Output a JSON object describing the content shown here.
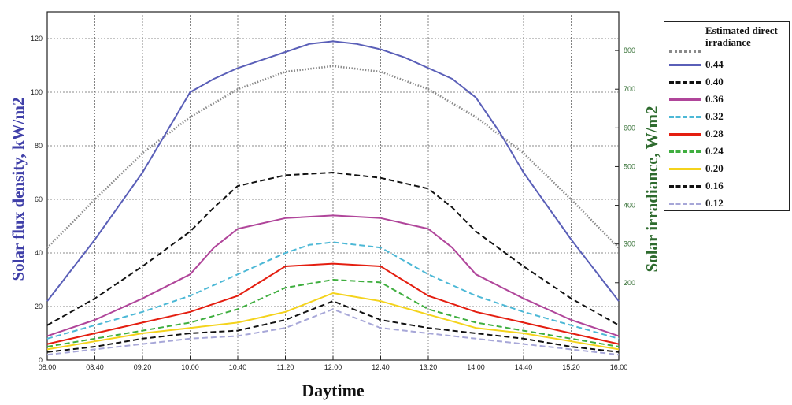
{
  "chart_data": {
    "type": "line",
    "xlabel": "Daytime",
    "ylabel": "Solar flux density, kW/m2",
    "y2label": "Solar irradiance, W/m2",
    "x_ticks": [
      "08:00",
      "08:40",
      "09:20",
      "10:00",
      "10:40",
      "11:20",
      "12:00",
      "12:40",
      "13:20",
      "14:00",
      "14:40",
      "15:20",
      "16:00"
    ],
    "ylim": [
      0,
      130
    ],
    "y_ticks": [
      0,
      20,
      40,
      60,
      80,
      100,
      120
    ],
    "y2lim": [
      0,
      900
    ],
    "y2_ticks": [
      200,
      300,
      400,
      500,
      600,
      700,
      800
    ],
    "grid": true,
    "legend_position": "outside-right",
    "series": [
      {
        "name": "Estimated direct irradiance",
        "axis": "right",
        "color": "#8a8a8a",
        "dash": "dotted",
        "x": [
          "08:00",
          "08:40",
          "09:20",
          "10:00",
          "10:40",
          "11:20",
          "12:00",
          "12:40",
          "13:20",
          "14:00",
          "14:40",
          "15:20",
          "16:00"
        ],
        "values": [
          290,
          415,
          535,
          628,
          700,
          745,
          760,
          745,
          700,
          628,
          535,
          415,
          290
        ]
      },
      {
        "name": "0.44",
        "axis": "left",
        "color": "#5a5fb8",
        "dash": "solid",
        "x": [
          "08:00",
          "08:40",
          "09:20",
          "09:40",
          "10:00",
          "10:20",
          "10:40",
          "11:00",
          "11:20",
          "11:40",
          "12:00",
          "12:20",
          "12:40",
          "13:00",
          "13:20",
          "13:40",
          "14:00",
          "14:20",
          "14:40",
          "15:20",
          "16:00"
        ],
        "values": [
          22,
          45,
          70,
          85,
          100,
          105,
          109,
          112,
          115,
          118,
          119,
          118,
          116,
          113,
          109,
          105,
          98,
          85,
          70,
          45,
          22
        ]
      },
      {
        "name": "0.40",
        "axis": "left",
        "color": "#111111",
        "dash": "dashed",
        "x": [
          "08:00",
          "08:40",
          "09:20",
          "10:00",
          "10:20",
          "10:40",
          "11:20",
          "12:00",
          "12:40",
          "13:20",
          "13:40",
          "14:00",
          "14:40",
          "15:20",
          "16:00"
        ],
        "values": [
          13,
          23,
          35,
          48,
          57,
          65,
          69,
          70,
          68,
          64,
          57,
          48,
          35,
          23,
          13
        ]
      },
      {
        "name": "0.36",
        "axis": "left",
        "color": "#b0459a",
        "dash": "solid",
        "x": [
          "08:00",
          "08:40",
          "09:20",
          "10:00",
          "10:20",
          "10:40",
          "11:20",
          "12:00",
          "12:40",
          "13:20",
          "13:40",
          "14:00",
          "14:40",
          "15:20",
          "16:00"
        ],
        "values": [
          9,
          15,
          23,
          32,
          42,
          49,
          53,
          54,
          53,
          49,
          42,
          32,
          23,
          15,
          9
        ]
      },
      {
        "name": "0.32",
        "axis": "left",
        "color": "#4cb8d6",
        "dash": "dashed",
        "x": [
          "08:00",
          "08:40",
          "09:20",
          "10:00",
          "10:40",
          "11:20",
          "11:40",
          "12:00",
          "12:40",
          "13:20",
          "14:00",
          "14:40",
          "15:20",
          "16:00"
        ],
        "values": [
          8,
          13,
          18,
          24,
          32,
          40,
          43,
          44,
          42,
          32,
          24,
          18,
          13,
          8
        ]
      },
      {
        "name": "0.28",
        "axis": "left",
        "color": "#e41e10",
        "dash": "solid",
        "x": [
          "08:00",
          "08:40",
          "09:20",
          "10:00",
          "10:40",
          "11:20",
          "12:00",
          "12:40",
          "13:20",
          "14:00",
          "14:40",
          "15:20",
          "16:00"
        ],
        "values": [
          6,
          10,
          14,
          18,
          24,
          35,
          36,
          35,
          24,
          18,
          14,
          10,
          6
        ]
      },
      {
        "name": "0.24",
        "axis": "left",
        "color": "#3fae3f",
        "dash": "dashed",
        "x": [
          "08:00",
          "08:40",
          "09:20",
          "10:00",
          "10:40",
          "11:20",
          "12:00",
          "12:40",
          "13:20",
          "14:00",
          "14:40",
          "15:20",
          "16:00"
        ],
        "values": [
          5,
          8,
          11,
          14,
          19,
          27,
          30,
          29,
          19,
          14,
          11,
          8,
          5
        ]
      },
      {
        "name": "0.20",
        "axis": "left",
        "color": "#f4d31c",
        "dash": "solid",
        "x": [
          "08:00",
          "08:40",
          "09:20",
          "10:00",
          "10:40",
          "11:20",
          "12:00",
          "12:40",
          "13:20",
          "14:00",
          "14:40",
          "15:20",
          "16:00"
        ],
        "values": [
          4,
          7,
          10,
          12,
          14,
          18,
          25,
          22,
          17,
          12,
          10,
          7,
          4
        ]
      },
      {
        "name": "0.16",
        "axis": "left",
        "color": "#111111",
        "dash": "dashed",
        "x": [
          "08:00",
          "08:40",
          "09:20",
          "10:00",
          "10:40",
          "11:20",
          "12:00",
          "12:40",
          "13:20",
          "14:00",
          "14:40",
          "15:20",
          "16:00"
        ],
        "values": [
          3,
          5,
          8,
          10,
          11,
          15,
          22,
          15,
          12,
          10,
          8,
          5,
          3
        ]
      },
      {
        "name": "0.12",
        "axis": "left",
        "color": "#a7a7d8",
        "dash": "dashed",
        "x": [
          "08:00",
          "08:40",
          "09:20",
          "10:00",
          "10:40",
          "11:20",
          "12:00",
          "12:40",
          "13:20",
          "14:00",
          "14:40",
          "15:20",
          "16:00"
        ],
        "values": [
          2,
          4,
          6,
          8,
          9,
          12,
          19,
          12,
          10,
          8,
          6,
          4,
          2
        ]
      }
    ]
  }
}
